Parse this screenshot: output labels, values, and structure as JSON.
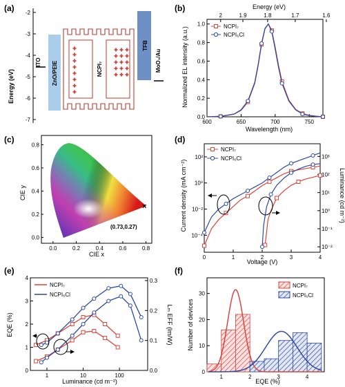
{
  "panels": {
    "a": {
      "label": "(a)",
      "ylabel": "Energy (eV)",
      "yticks": [
        "-2",
        "-3",
        "-4",
        "-5",
        "-6",
        "-7"
      ],
      "layers": [
        "ITO",
        "ZnO/PEIE",
        "NCPI₇",
        "TFB",
        "MoO₃/Au"
      ],
      "colors": {
        "frame": "#c0392b",
        "zno": "#a9cdea",
        "tfb": "#6f8fc7",
        "star": "#d9443e"
      }
    },
    "b": {
      "label": "(b)",
      "ylabel": "Normalized EL intensity (a.u.)",
      "xlabel": "Wavelength (nm)",
      "toplabel": "Energy (eV)",
      "xticks": [
        "600",
        "650",
        "700",
        "750"
      ],
      "yticks": [
        "0.0",
        "0.2",
        "0.4",
        "0.6",
        "0.8",
        "1.0"
      ],
      "topticks": [
        "2",
        "1.9",
        "1.8",
        "1.7",
        "1.6"
      ],
      "legend": [
        "NCPI₇",
        "NCPI₆Cl"
      ]
    },
    "c": {
      "label": "(c)",
      "xlabel": "CIE x",
      "ylabel": "CIE y",
      "xticks": [
        "0.0",
        "0.2",
        "0.4",
        "0.6",
        "0.8"
      ],
      "yticks": [
        "0.0",
        "0.2",
        "0.4",
        "0.6",
        "0.8"
      ],
      "point_label": "(0.73,0.27)"
    },
    "d": {
      "label": "(d)",
      "xlabel": "Voltage (V)",
      "ylabel": "Current density (mA cm⁻²)",
      "ylabel2": "Luminance (cd m⁻²)",
      "xticks": [
        "0",
        "1",
        "2",
        "3",
        "4"
      ],
      "yticks_left": [
        "10²",
        "10⁰",
        "10⁻²",
        "10⁻⁴"
      ],
      "yticks_right": [
        "10³",
        "10²",
        "10¹",
        "10⁰",
        "10⁻¹",
        "10⁻²"
      ],
      "legend": [
        "NCPI₇",
        "NCPI₆Cl"
      ]
    },
    "e": {
      "label": "(e)",
      "xlabel": "Luminance (cd m⁻²)",
      "ylabel": "EQE (%)",
      "ylabel2": "Lₘ EFF (lm/W)",
      "xticks": [
        "1",
        "10",
        "100"
      ],
      "yticks_left": [
        "0",
        "1",
        "2",
        "3",
        "4"
      ],
      "yticks_right": [
        "0.0",
        "0.1",
        "0.2",
        "0.3"
      ],
      "legend": [
        "NCPI₇",
        "NCPI₆Cl"
      ]
    },
    "f": {
      "label": "(f)",
      "xlabel": "EQE (%)",
      "ylabel": "Number of devices",
      "xticks": [
        "1",
        "2",
        "3",
        "4"
      ],
      "yticks": [
        "0",
        "10",
        "20",
        "30"
      ],
      "legend": [
        "NCPI₇",
        "NCPI₆Cl"
      ]
    }
  },
  "chart_data": [
    {
      "panel": "b",
      "type": "line",
      "xlabel": "Wavelength (nm)",
      "ylabel": "Normalized EL intensity (a.u.)",
      "xlim": [
        600,
        770
      ],
      "ylim": [
        0,
        1.05
      ],
      "series": [
        {
          "name": "NCPI₇",
          "color": "#d9443e",
          "x": [
            600,
            620,
            640,
            650,
            660,
            670,
            675,
            680,
            685,
            690,
            695,
            700,
            705,
            710,
            720,
            730,
            740,
            750,
            760,
            770
          ],
          "values": [
            0.0,
            0.005,
            0.03,
            0.07,
            0.16,
            0.36,
            0.55,
            0.78,
            0.95,
            1.0,
            0.93,
            0.75,
            0.55,
            0.38,
            0.18,
            0.08,
            0.035,
            0.015,
            0.006,
            0.0
          ]
        },
        {
          "name": "NCPI₆Cl",
          "color": "#2c4a9e",
          "x": [
            600,
            620,
            640,
            650,
            660,
            670,
            675,
            680,
            685,
            690,
            695,
            700,
            705,
            710,
            720,
            730,
            740,
            750,
            760,
            770
          ],
          "values": [
            0.0,
            0.005,
            0.03,
            0.075,
            0.17,
            0.37,
            0.56,
            0.79,
            0.95,
            1.0,
            0.92,
            0.73,
            0.53,
            0.36,
            0.17,
            0.075,
            0.03,
            0.012,
            0.005,
            0.0
          ]
        }
      ]
    },
    {
      "panel": "d",
      "type": "line",
      "xlabel": "Voltage (V)",
      "ylabel": "Current density (mA cm⁻²)",
      "xlim": [
        0,
        4
      ],
      "series": [
        {
          "name": "NCPI₇ (J)",
          "color": "#d9443e",
          "x": [
            0,
            0.25,
            0.5,
            0.75,
            1.0,
            1.25,
            1.5,
            1.75,
            2.0,
            2.25,
            2.5,
            2.75,
            3.0,
            3.25,
            3.5,
            3.75,
            4.0
          ],
          "log_values": [
            -4.8,
            -3.5,
            -2.8,
            -2.3,
            -1.8,
            -1.3,
            -1.0,
            -0.6,
            -0.2,
            0.1,
            0.4,
            0.7,
            0.9,
            1.0,
            1.1,
            1.2,
            1.3
          ]
        },
        {
          "name": "NCPI₆Cl (J)",
          "color": "#2c4a9e",
          "x": [
            0,
            0.25,
            0.5,
            0.75,
            1.0,
            1.25,
            1.5,
            1.75,
            2.0,
            2.25,
            2.5,
            2.75,
            3.0,
            3.25,
            3.5,
            3.75,
            4.0
          ],
          "log_values": [
            -3.8,
            -2.6,
            -2.0,
            -1.6,
            -1.2,
            -0.9,
            -0.6,
            -0.3,
            0.0,
            0.4,
            0.8,
            1.2,
            1.5,
            1.7,
            1.9,
            2.1,
            2.3
          ]
        },
        {
          "name": "NCPI₇ (L)",
          "color": "#d9443e",
          "x": [
            2.1,
            2.2,
            2.3,
            2.5,
            2.75,
            3.0,
            3.25,
            3.5,
            3.75,
            4.0
          ],
          "log_values": [
            -1.9,
            -0.5,
            0.0,
            0.7,
            1.1,
            1.4,
            1.6,
            1.75,
            1.85,
            1.95
          ]
        },
        {
          "name": "NCPI₆Cl (L)",
          "color": "#2c4a9e",
          "x": [
            2.0,
            2.05,
            2.15,
            2.3,
            2.5,
            2.75,
            3.0,
            3.25,
            3.5,
            3.75,
            4.0
          ],
          "log_values": [
            -2.0,
            -0.8,
            0.2,
            0.9,
            1.4,
            1.8,
            2.1,
            2.3,
            2.45,
            2.55,
            2.6
          ]
        }
      ]
    },
    {
      "panel": "e",
      "type": "line",
      "xlabel": "Luminance (cd m⁻²)",
      "ylabel": "EQE (%)",
      "series": [
        {
          "name": "NCPI₇ EQE",
          "color": "#d9443e",
          "x": [
            0.5,
            1,
            2,
            5,
            10,
            20,
            40,
            90
          ],
          "values": [
            1.1,
            1.3,
            1.6,
            2.0,
            2.3,
            2.4,
            2.0,
            1.5
          ]
        },
        {
          "name": "NCPI₇ Leff",
          "color": "#d9443e",
          "x": [
            0.5,
            1,
            2,
            5,
            10,
            20,
            40,
            90
          ],
          "values": [
            0.4,
            0.6,
            0.9,
            1.3,
            1.65,
            1.7,
            1.4,
            1.0
          ]
        },
        {
          "name": "NCPI₆Cl EQE",
          "color": "#2c4a9e",
          "x": [
            0.7,
            1,
            2,
            5,
            10,
            20,
            50,
            110,
            200,
            400
          ],
          "values": [
            1.1,
            1.2,
            1.6,
            2.2,
            2.7,
            3.1,
            3.55,
            3.65,
            3.3,
            2.3
          ]
        },
        {
          "name": "NCPI₆Cl Leff",
          "color": "#2c4a9e",
          "x": [
            0.7,
            1,
            2,
            5,
            10,
            20,
            50,
            110,
            200,
            400
          ],
          "values": [
            0.35,
            0.55,
            0.9,
            1.5,
            2.0,
            2.5,
            3.0,
            3.2,
            2.8,
            1.3
          ]
        }
      ]
    },
    {
      "panel": "f",
      "type": "bar",
      "xlabel": "EQE (%)",
      "ylabel": "Number of devices",
      "xlim": [
        0.5,
        4.6
      ],
      "ylim": [
        0,
        36
      ],
      "series": [
        {
          "name": "NCPI₇",
          "color": "#d9443e",
          "bins": [
            0.75,
            1.25,
            1.75,
            2.25
          ],
          "values": [
            3,
            16,
            22,
            2
          ]
        },
        {
          "name": "NCPI₆Cl",
          "color": "#2c4a9e",
          "bins": [
            2.25,
            2.75,
            3.25,
            3.75,
            4.25
          ],
          "values": [
            4,
            5,
            12,
            15,
            11
          ]
        }
      ]
    }
  ]
}
